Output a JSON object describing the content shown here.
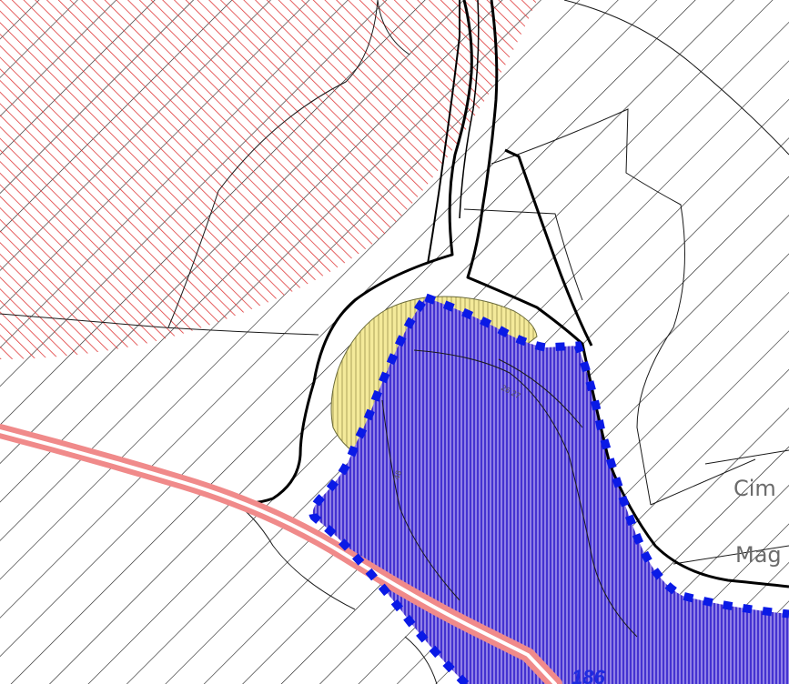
{
  "map": {
    "labels": {
      "parcel_number": "186",
      "street_1": "Cim",
      "street_2": "Mag",
      "micro_1": "26 27",
      "micro_2": "48"
    },
    "colors": {
      "background": "#ffffff",
      "hatch_black": "#1a1a1a",
      "hatch_red": "#e03a3a",
      "parcel_fill": "#6b55d8",
      "parcel_hatch": "#2410c8",
      "parcel_boundary": "#0a1ae6",
      "parcel_label": "#1e2be0",
      "yellow_zone": "#f4ea9a",
      "pink_road": "#f08a8a",
      "outline": "#000000"
    }
  }
}
